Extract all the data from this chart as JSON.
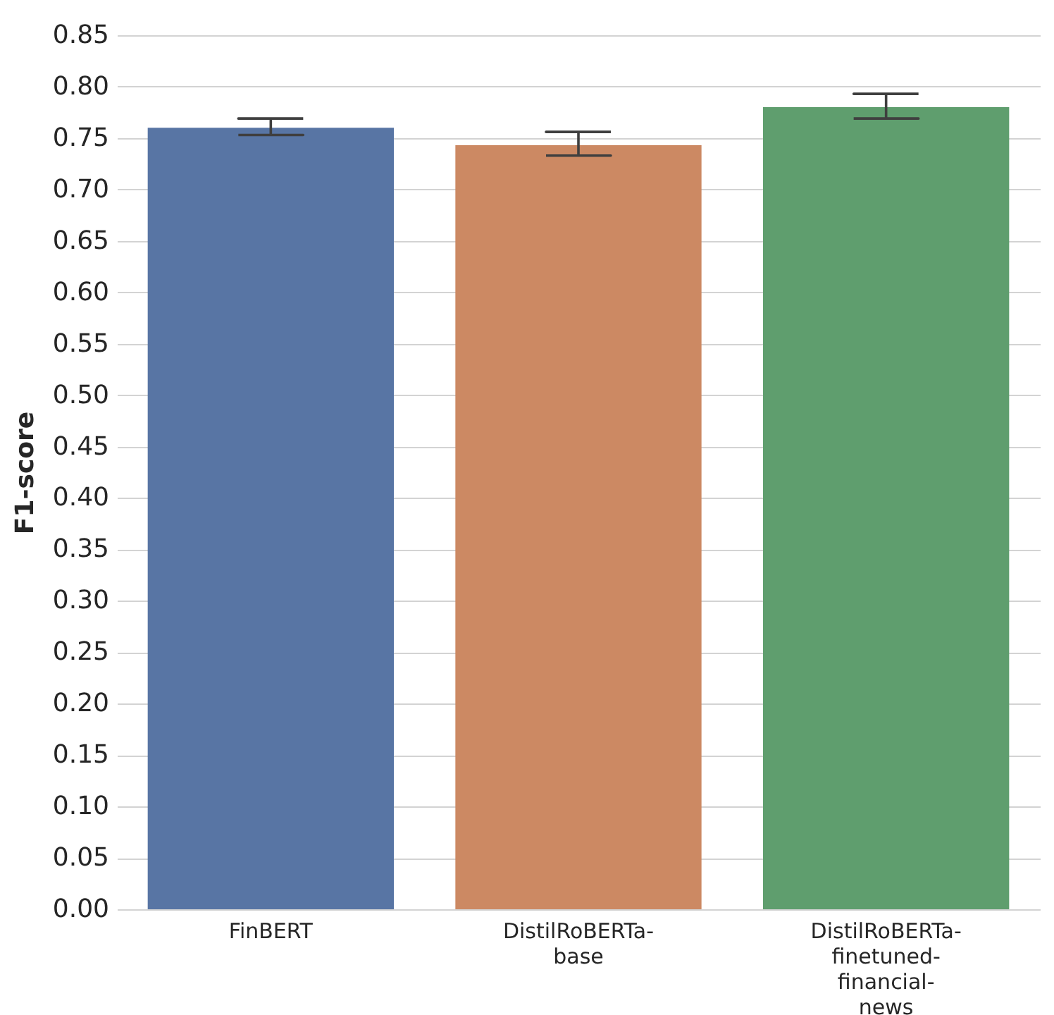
{
  "chart_data": {
    "type": "bar",
    "ylabel": "F1-score",
    "categories": [
      "FinBERT",
      "DistilRoBERTa-base",
      "DistilRoBERTa-finetuned-financial-news"
    ],
    "values": [
      0.76,
      0.743,
      0.78
    ],
    "errors": [
      [
        0.753,
        0.769
      ],
      [
        0.733,
        0.756
      ],
      [
        0.769,
        0.793
      ]
    ],
    "colors": [
      "#5875a4",
      "#cc8963",
      "#5f9e6e"
    ],
    "ylim": [
      0,
      0.85
    ],
    "yticks": [
      {
        "value": 0,
        "label": "0.00"
      },
      0.05,
      {
        "value": 0.1,
        "label": "0.10"
      },
      0.15,
      {
        "value": 0.2,
        "label": "0.20"
      },
      0.25,
      {
        "value": 0.3,
        "label": "0.30"
      },
      0.35,
      {
        "value": 0.4,
        "label": "0.40"
      },
      0.45,
      {
        "value": 0.5,
        "label": "0.50"
      },
      0.55,
      {
        "value": 0.6,
        "label": "0.60"
      },
      0.65,
      {
        "value": 0.7,
        "label": "0.70"
      },
      0.75,
      {
        "value": 0.8,
        "label": "0.80"
      },
      0.85
    ],
    "grid": "y"
  }
}
